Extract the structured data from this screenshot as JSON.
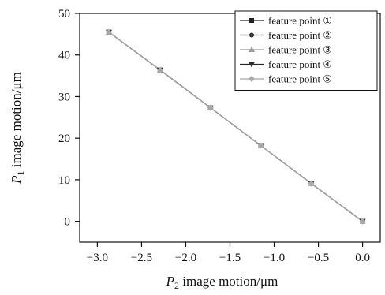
{
  "chart_data": {
    "type": "line",
    "title": "",
    "xlabel": {
      "symbol": "P",
      "sub": "2",
      "text": " image motion/μm"
    },
    "ylabel": {
      "symbol": "P",
      "sub": "1",
      "text": " image motion/μm"
    },
    "xlim": [
      -3.2,
      0.2
    ],
    "ylim": [
      -5,
      50
    ],
    "xticks": [
      -3.0,
      -2.5,
      -2.0,
      -1.5,
      -1.0,
      -0.5,
      0.0
    ],
    "xtick_labels": [
      "−3.0",
      "−2.5",
      "−2.0",
      "−1.5",
      "−1.0",
      "−0.5",
      "0.0"
    ],
    "yticks": [
      0,
      10,
      20,
      30,
      40,
      50
    ],
    "ytick_labels": [
      "0",
      "10",
      "20",
      "30",
      "40",
      "50"
    ],
    "legend_position": "top-right",
    "series": [
      {
        "name": "feature point ①",
        "marker": "square",
        "color": "#222222",
        "x": [
          -2.87,
          -2.29,
          -1.72,
          -1.15,
          -0.58,
          0.0
        ],
        "y": [
          45.5,
          36.4,
          27.3,
          18.2,
          9.1,
          0.0
        ]
      },
      {
        "name": "feature point ②",
        "marker": "circle",
        "color": "#333333",
        "x": [
          -2.87,
          -2.29,
          -1.72,
          -1.15,
          -0.58,
          0.0
        ],
        "y": [
          45.5,
          36.4,
          27.3,
          18.2,
          9.1,
          0.0
        ]
      },
      {
        "name": "feature point ③",
        "marker": "triangle-up",
        "color": "#9a9a9a",
        "x": [
          -2.87,
          -2.29,
          -1.72,
          -1.15,
          -0.58,
          0.0
        ],
        "y": [
          45.5,
          36.4,
          27.3,
          18.2,
          9.1,
          0.0
        ]
      },
      {
        "name": "feature point ④",
        "marker": "triangle-down",
        "color": "#2a2a2a",
        "x": [
          -2.87,
          -2.29,
          -1.72,
          -1.15,
          -0.58,
          0.0
        ],
        "y": [
          45.5,
          36.4,
          27.3,
          18.2,
          9.1,
          0.0
        ]
      },
      {
        "name": "feature point ⑤",
        "marker": "diamond",
        "color": "#a8a8a8",
        "x": [
          -2.87,
          -2.29,
          -1.72,
          -1.15,
          -0.58,
          0.0
        ],
        "y": [
          45.5,
          36.4,
          27.3,
          18.2,
          9.1,
          0.0
        ]
      }
    ]
  }
}
